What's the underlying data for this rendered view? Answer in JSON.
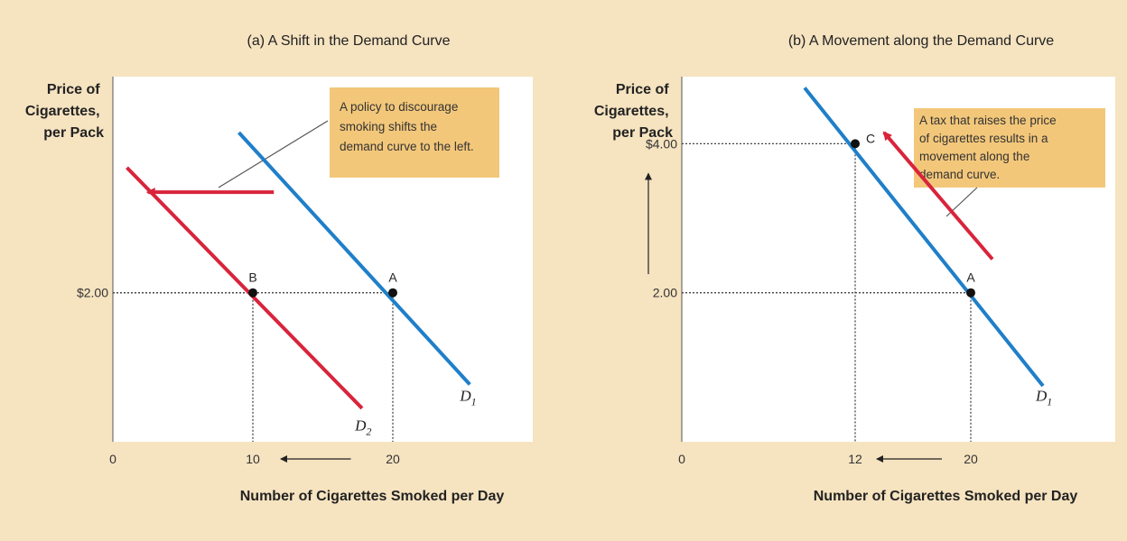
{
  "colors": {
    "background": "#f6e3c0",
    "plot_bg": "#ffffff",
    "note_bg": "#f3c77a",
    "demand_blue": "#1f7fc9",
    "demand_red": "#d8243c",
    "axis": "#555555",
    "guide": "#444444"
  },
  "chart_data": [
    {
      "type": "line",
      "title": "(a) A Shift in the Demand Curve",
      "ylabel": [
        "Price of",
        "Cigarettes,",
        "per Pack"
      ],
      "xlabel": "Number of Cigarettes Smoked per Day",
      "origin_label": "0",
      "x_ticks": [
        {
          "value": 10,
          "label": "10"
        },
        {
          "value": 20,
          "label": "20"
        }
      ],
      "y_ticks": [
        {
          "value": 2.0,
          "label": "$2.00"
        }
      ],
      "xlim": [
        0,
        30
      ],
      "ylim": [
        0,
        4.9
      ],
      "series": [
        {
          "name": "D1",
          "color": "#1f7fc9",
          "x": [
            9,
            25.5
          ],
          "y": [
            4.15,
            0.77
          ]
        },
        {
          "name": "D2",
          "color": "#d8243c",
          "x": [
            1,
            17.8
          ],
          "y": [
            3.68,
            0.45
          ]
        }
      ],
      "points": [
        {
          "label": "A",
          "x": 20,
          "y": 2.0
        },
        {
          "label": "B",
          "x": 10,
          "y": 2.0
        }
      ],
      "arrows": [
        {
          "from": [
            11.5,
            3.35
          ],
          "to": [
            2.5,
            3.35
          ],
          "color": "#d8243c"
        }
      ],
      "annotation": [
        "A policy to discourage",
        "smoking shifts the",
        "demand curve to the left."
      ],
      "curve_labels": [
        {
          "main": "D",
          "sub": "1",
          "x": 24.8,
          "y": 0.55
        },
        {
          "main": "D",
          "sub": "2",
          "x": 17.3,
          "y": 0.15
        }
      ],
      "x_shift_arrow": {
        "from": 17,
        "to": 12,
        "color": "#222222"
      }
    },
    {
      "type": "line",
      "title": "(b) A Movement along the Demand Curve",
      "ylabel": [
        "Price of",
        "Cigarettes,",
        "per Pack"
      ],
      "xlabel": "Number of Cigarettes Smoked per Day",
      "origin_label": "0",
      "x_ticks": [
        {
          "value": 12,
          "label": "12"
        },
        {
          "value": 20,
          "label": "20"
        }
      ],
      "y_ticks": [
        {
          "value": 2.0,
          "label": "2.00"
        },
        {
          "value": 4.0,
          "label": "$4.00"
        }
      ],
      "xlim": [
        0,
        30
      ],
      "ylim": [
        0,
        4.9
      ],
      "series": [
        {
          "name": "D1",
          "color": "#1f7fc9",
          "x": [
            8.5,
            25
          ],
          "y": [
            4.75,
            0.75
          ]
        }
      ],
      "points": [
        {
          "label": "A",
          "x": 20,
          "y": 2.0
        },
        {
          "label": "C",
          "x": 12,
          "y": 4.0
        }
      ],
      "arrows": [
        {
          "from": [
            21.5,
            2.45
          ],
          "to": [
            14,
            4.15
          ],
          "color": "#d8243c"
        }
      ],
      "annotation": [
        "A tax that raises the price",
        "of cigarettes results in a",
        "movement along the",
        "demand curve."
      ],
      "curve_labels": [
        {
          "main": "D",
          "sub": "1",
          "x": 24.5,
          "y": 0.55
        }
      ],
      "x_shift_arrow": {
        "from": 18,
        "to": 13.5,
        "color": "#222222"
      },
      "y_shift_arrow": {
        "from": 2.25,
        "to": 3.6,
        "color": "#222222"
      }
    }
  ]
}
